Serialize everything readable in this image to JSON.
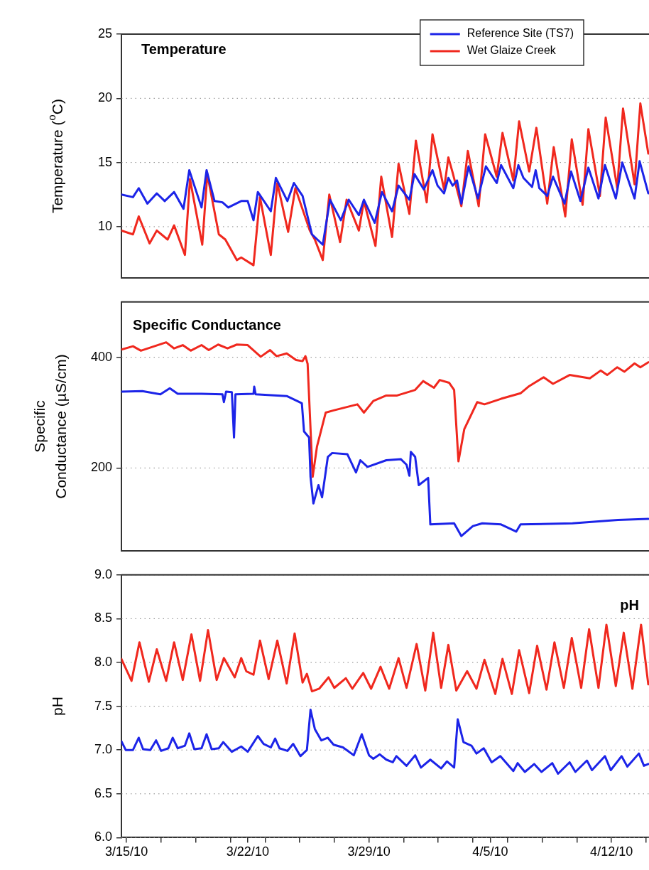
{
  "chart_data": [
    {
      "type": "line",
      "title": "Temperature",
      "ylabel": "Temperature ($^{o}$C)",
      "xlim": [
        "--03-14T17:00",
        "--04-14T04:00"
      ],
      "ylim": [
        6,
        25
      ],
      "yticks": [
        10,
        15,
        20,
        25
      ],
      "grid": "y",
      "legend": "top right",
      "tick_labels": "y",
      "line_style": "solid",
      "series": [
        {
          "name": "Reference Site (TS7)",
          "color": "#1c24e8",
          "x": [
            "--03-14T17:00",
            "--03-15T09:00",
            "--03-15T17:00",
            "--03-16T05:00",
            "--03-16T18:00",
            "--03-17T05:00",
            "--03-17T18:00",
            "--03-18T07:00",
            "--03-18T15:00",
            "--03-19T08:00",
            "--03-19T15:00",
            "--03-20T02:00",
            "--03-20T13:00",
            "--03-20T21:00",
            "--03-21T15:00",
            "--03-22T00:00",
            "--03-22T08:00",
            "--03-22T14:00",
            "--03-23T08:00",
            "--03-23T15:00",
            "--03-24T07:00",
            "--03-24T16:00",
            "--03-25T04:00",
            "--03-25T17:00",
            "--03-26T08:00",
            "--03-26T18:00",
            "--03-27T09:00",
            "--03-27T20:00",
            "--03-28T10:00",
            "--03-28T17:00",
            "--03-29T08:00",
            "--03-29T18:00",
            "--03-30T08:00",
            "--03-30T17:00",
            "--03-31T08:00",
            "--03-31T15:00",
            "--04-01T04:00",
            "--04-01T16:00",
            "--04-01T23:00",
            "--04-02T08:00",
            "--04-02T14:00",
            "--04-02T20:00",
            "--04-03T02:00",
            "--04-03T08:00",
            "--04-03T18:00",
            "--04-04T07:00",
            "--04-04T18:00",
            "--04-05T09:00",
            "--04-05T15:00",
            "--04-06T08:00",
            "--04-06T15:00",
            "--04-06T22:00",
            "--04-07T10:00",
            "--04-07T15:00",
            "--04-07T20:00",
            "--04-08T07:00",
            "--04-08T15:00",
            "--04-09T07:00",
            "--04-09T16:00",
            "--04-10T05:00",
            "--04-10T16:00",
            "--04-11T06:00",
            "--04-11T15:00",
            "--04-12T06:00",
            "--04-12T15:00",
            "--04-13T08:00",
            "--04-13T15:00",
            "--04-14T03:00"
          ],
          "values": [
            12.5,
            12.3,
            13.0,
            11.8,
            12.6,
            12.0,
            12.7,
            11.4,
            14.4,
            11.5,
            14.4,
            12.0,
            11.9,
            11.5,
            12.0,
            12.0,
            10.5,
            12.7,
            11.2,
            13.8,
            12.0,
            13.4,
            12.4,
            9.4,
            8.6,
            12.1,
            10.5,
            12.1,
            10.9,
            12.1,
            10.3,
            12.7,
            11.2,
            13.2,
            12.1,
            14.1,
            12.9,
            14.4,
            13.2,
            12.6,
            13.8,
            13.2,
            13.6,
            11.8,
            14.7,
            12.2,
            14.7,
            13.4,
            14.8,
            13.0,
            14.8,
            13.8,
            13.1,
            14.4,
            13.0,
            12.4,
            13.9,
            11.8,
            14.3,
            12.0,
            14.6,
            12.2,
            14.8,
            12.2,
            15.0,
            12.2,
            15.1,
            12.6
          ]
        },
        {
          "name": "Wet Glaize Creek",
          "color": "#f0281e",
          "x": [
            "--03-14T17:00",
            "--03-15T09:00",
            "--03-15T17:00",
            "--03-16T08:00",
            "--03-16T18:00",
            "--03-17T09:00",
            "--03-17T18:00",
            "--03-18T09:00",
            "--03-18T16:00",
            "--03-19T09:00",
            "--03-19T16:00",
            "--03-20T08:00",
            "--03-20T17:00",
            "--03-21T09:00",
            "--03-21T15:00",
            "--03-22T08:00",
            "--03-22T17:00",
            "--03-23T08:00",
            "--03-23T17:00",
            "--03-24T08:00",
            "--03-24T18:00",
            "--03-25T14:00",
            "--03-25T21:00",
            "--03-26T08:00",
            "--03-26T17:00",
            "--03-27T08:00",
            "--03-27T17:00",
            "--03-28T10:00",
            "--03-28T17:00",
            "--03-29T09:00",
            "--03-29T17:00",
            "--03-30T08:00",
            "--03-30T17:00",
            "--03-31T08:00",
            "--03-31T17:00",
            "--04-01T08:00",
            "--04-01T16:00",
            "--04-02T08:00",
            "--04-02T14:00",
            "--04-02T20:00",
            "--04-03T08:00",
            "--04-03T17:00",
            "--04-04T08:00",
            "--04-04T17:00",
            "--04-05T09:00",
            "--04-05T17:00",
            "--04-06T08:00",
            "--04-06T16:00",
            "--04-07T06:00",
            "--04-07T16:00",
            "--04-08T07:00",
            "--04-08T16:00",
            "--04-09T08:00",
            "--04-09T17:00",
            "--04-10T08:00",
            "--04-10T16:00",
            "--04-11T08:00",
            "--04-11T16:00",
            "--04-12T08:00",
            "--04-12T16:00",
            "--04-13T08:00",
            "--04-13T16:00",
            "--04-14T03:00"
          ],
          "values": [
            9.7,
            9.4,
            10.8,
            8.7,
            9.7,
            9.0,
            10.1,
            7.8,
            13.7,
            8.6,
            14.1,
            9.4,
            9.0,
            7.4,
            7.6,
            7.0,
            12.3,
            7.8,
            13.4,
            9.6,
            13.0,
            9.7,
            9.0,
            7.4,
            12.5,
            8.8,
            12.1,
            9.7,
            12.0,
            8.5,
            13.9,
            9.2,
            14.9,
            11.0,
            16.7,
            11.9,
            17.2,
            12.9,
            15.4,
            14.2,
            11.6,
            15.9,
            11.6,
            17.2,
            13.9,
            17.3,
            13.6,
            18.2,
            14.3,
            17.7,
            11.8,
            16.2,
            10.8,
            16.8,
            11.7,
            17.6,
            12.4,
            18.5,
            13.0,
            19.2,
            13.3,
            19.6,
            15.7
          ]
        }
      ]
    },
    {
      "type": "line",
      "title": "Specific Conductance",
      "ylabel": "Specific Conductance (µS/cm)",
      "xlim": [
        "--03-14T17:00",
        "--04-14T04:00"
      ],
      "ylim": [
        50,
        500
      ],
      "yticks": [
        200,
        400
      ],
      "grid": "y",
      "tick_labels": "y",
      "line_style": "solid",
      "series": [
        {
          "color": "#1c24e8",
          "x": [
            "--03-14T17:00",
            "--03-15T22:00",
            "--03-16T23:00",
            "--03-17T12:00",
            "--03-17T23:00",
            "--03-19T08:00",
            "--03-20T13:00",
            "--03-20T15:00",
            "--03-20T18:00",
            "--03-21T02:00",
            "--03-21T05:00",
            "--03-21T07:00",
            "--03-22T08:00",
            "--03-22T09:00",
            "--03-22T11:00",
            "--03-24T06:00",
            "--03-24T22:00",
            "--03-25T03:00",
            "--03-25T06:00",
            "--03-25T13:00",
            "--03-25T15:00",
            "--03-25T19:00",
            "--03-26T02:00",
            "--03-26T07:00",
            "--03-26T15:00",
            "--03-26T21:00",
            "--03-27T18:00",
            "--03-28T06:00",
            "--03-28T12:00",
            "--03-28T22:00",
            "--03-30T00:00",
            "--03-30T20:00",
            "--03-31T04:00",
            "--03-31T08:00",
            "--03-31T10:00",
            "--03-31T16:00",
            "--03-31T21:00",
            "--04-01T10:00",
            "--04-01T13:00",
            "--04-02T22:00",
            "--04-03T08:00",
            "--04-04T00:00",
            "--04-04T13:00",
            "--04-05T15:00",
            "--04-06T12:00",
            "--04-06T18:00",
            "--04-09T18:00",
            "--04-12T09:00",
            "--04-14T03:00"
          ],
          "values": [
            338,
            339,
            333,
            344,
            334,
            334,
            333,
            319,
            338,
            337,
            255,
            333,
            334,
            347,
            333,
            330,
            320,
            317,
            266,
            255,
            184,
            136,
            169,
            147,
            220,
            227,
            225,
            192,
            214,
            202,
            214,
            216,
            206,
            186,
            229,
            220,
            169,
            182,
            98,
            100,
            77,
            95,
            100,
            98,
            85,
            98,
            100,
            106,
            108
          ]
        },
        {
          "color": "#f0281e",
          "x": [
            "--03-14T17:00",
            "--03-15T09:00",
            "--03-15T20:00",
            "--03-17T07:00",
            "--03-17T18:00",
            "--03-18T06:00",
            "--03-18T17:00",
            "--03-19T08:00",
            "--03-19T18:00",
            "--03-20T07:00",
            "--03-20T20:00",
            "--03-21T09:00",
            "--03-22T00:00",
            "--03-22T18:00",
            "--03-23T07:00",
            "--03-23T16:00",
            "--03-24T06:00",
            "--03-24T19:00",
            "--03-25T04:00",
            "--03-25T08:00",
            "--03-25T11:00",
            "--03-25T18:00",
            "--03-26T00:00",
            "--03-26T12:00",
            "--03-26T23:00",
            "--03-28T08:00",
            "--03-28T17:00",
            "--03-29T06:00",
            "--03-30T00:00",
            "--03-30T15:00",
            "--03-31T16:00",
            "--04-01T03:00",
            "--04-01T18:00",
            "--04-02T02:00",
            "--04-02T15:00",
            "--04-02T22:00",
            "--04-03T04:00",
            "--04-03T12:00",
            "--04-04T06:00",
            "--04-04T16:00",
            "--04-05T15:00",
            "--04-06T18:00",
            "--04-07T06:00",
            "--04-08T02:00",
            "--04-08T15:00",
            "--04-09T14:00",
            "--04-10T18:00",
            "--04-11T09:00",
            "--04-11T18:00",
            "--04-12T08:00",
            "--04-12T18:00",
            "--04-13T08:00",
            "--04-13T16:00",
            "--04-14T03:00"
          ],
          "values": [
            414,
            420,
            412,
            427,
            416,
            422,
            412,
            422,
            413,
            423,
            416,
            423,
            422,
            401,
            413,
            402,
            407,
            395,
            393,
            402,
            388,
            184,
            239,
            300,
            304,
            315,
            300,
            321,
            331,
            331,
            341,
            357,
            345,
            359,
            354,
            341,
            212,
            270,
            319,
            315,
            325,
            335,
            348,
            364,
            352,
            368,
            362,
            376,
            368,
            382,
            374,
            389,
            382,
            391
          ]
        }
      ]
    },
    {
      "type": "line",
      "title": "pH",
      "ylabel": "pH",
      "xlim": [
        "--03-14T17:00",
        "--04-14T04:00"
      ],
      "ylim": [
        6,
        9
      ],
      "yticks": [
        {
          "value": 6,
          "label": "6.0"
        },
        6.5,
        {
          "value": 7,
          "label": "7.0"
        },
        7.5,
        {
          "value": 8,
          "label": "8.0"
        },
        8.5,
        {
          "value": 9,
          "label": "9.0"
        }
      ],
      "xticks": [
        {
          "value": "--03-15",
          "label": "3/15/10"
        },
        {
          "value": "--03-17",
          "label": null
        },
        {
          "value": "--03-19",
          "label": null
        },
        {
          "value": "--03-21",
          "label": null
        },
        {
          "value": "--03-22",
          "label": "3/22/10"
        },
        {
          "value": "--03-23",
          "label": null
        },
        {
          "value": "--03-25",
          "label": null
        },
        {
          "value": "--03-27",
          "label": null
        },
        {
          "value": "--03-29",
          "label": "3/29/10"
        },
        {
          "value": "--03-31",
          "label": null
        },
        {
          "value": "--04-02",
          "label": null
        },
        {
          "value": "--04-04",
          "label": null
        },
        {
          "value": "--04-05",
          "label": "4/5/10"
        },
        {
          "value": "--04-06",
          "label": null
        },
        {
          "value": "--04-08",
          "label": null
        },
        {
          "value": "--04-10",
          "label": null
        },
        {
          "value": "--04-12",
          "label": "4/12/10"
        },
        {
          "value": "--04-14",
          "label": null
        }
      ],
      "grid": "y",
      "line_style": "solid",
      "series": [
        {
          "color": "#1c24e8",
          "x": [
            "--03-14T17:00",
            "--03-14T23:00",
            "--03-15T09:00",
            "--03-15T17:00",
            "--03-15T23:00",
            "--03-16T09:00",
            "--03-16T17:00",
            "--03-17T00:00",
            "--03-17T10:00",
            "--03-17T16:00",
            "--03-17T23:00",
            "--03-18T09:00",
            "--03-18T15:00",
            "--03-18T22:00",
            "--03-19T08:00",
            "--03-19T15:00",
            "--03-19T22:00",
            "--03-20T08:00",
            "--03-20T14:00",
            "--03-21T02:00",
            "--03-21T15:00",
            "--03-22T00:00",
            "--03-22T14:00",
            "--03-22T22:00",
            "--03-23T08:00",
            "--03-23T14:00",
            "--03-23T20:00",
            "--03-24T07:00",
            "--03-24T15:00",
            "--03-25T01:00",
            "--03-25T10:00",
            "--03-25T15:00",
            "--03-25T21:00",
            "--03-26T06:00",
            "--03-26T15:00",
            "--03-26T23:00",
            "--03-27T12:00",
            "--03-28T03:00",
            "--03-28T14:00",
            "--03-29T00:00",
            "--03-29T06:00",
            "--03-29T15:00",
            "--03-30T00:00",
            "--03-30T09:00",
            "--03-30T14:00",
            "--03-31T04:00",
            "--03-31T16:00",
            "--04-01T00:00",
            "--04-01T13:00",
            "--04-02T04:00",
            "--04-02T12:00",
            "--04-02T22:00",
            "--04-03T03:00",
            "--04-03T11:00",
            "--04-03T22:00",
            "--04-04T05:00",
            "--04-04T15:00",
            "--04-05T02:00",
            "--04-05T14:00",
            "--04-06T08:00",
            "--04-06T14:00",
            "--04-07T00:00",
            "--04-07T13:00",
            "--04-07T23:00",
            "--04-08T14:00",
            "--04-08T22:00",
            "--04-09T14:00",
            "--04-09T22:00",
            "--04-10T14:00",
            "--04-10T21:00",
            "--04-11T15:00",
            "--04-11T23:00",
            "--04-12T14:00",
            "--04-12T22:00",
            "--04-13T14:00",
            "--04-13T21:00",
            "--04-14T03:00"
          ],
          "values": [
            7.1,
            7.0,
            7.0,
            7.14,
            7.01,
            7.0,
            7.11,
            6.99,
            7.02,
            7.14,
            7.02,
            7.05,
            7.19,
            7.01,
            7.02,
            7.18,
            7.01,
            7.02,
            7.09,
            6.98,
            7.04,
            6.98,
            7.16,
            7.07,
            7.03,
            7.13,
            7.02,
            6.99,
            7.07,
            6.93,
            7.0,
            7.46,
            7.24,
            7.11,
            7.14,
            7.06,
            7.03,
            6.94,
            7.18,
            6.94,
            6.9,
            6.95,
            6.89,
            6.86,
            6.93,
            6.82,
            6.94,
            6.8,
            6.89,
            6.79,
            6.87,
            6.8,
            7.35,
            7.09,
            7.05,
            6.96,
            7.02,
            6.86,
            6.93,
            6.76,
            6.85,
            6.75,
            6.84,
            6.75,
            6.85,
            6.73,
            6.86,
            6.75,
            6.88,
            6.77,
            6.93,
            6.77,
            6.93,
            6.81,
            6.96,
            6.82,
            6.84
          ]
        },
        {
          "color": "#f0281e",
          "x": [
            "--03-14T17:00",
            "--03-15T07:00",
            "--03-15T18:00",
            "--03-16T07:00",
            "--03-16T18:00",
            "--03-17T07:00",
            "--03-17T18:00",
            "--03-18T06:00",
            "--03-18T18:00",
            "--03-19T06:00",
            "--03-19T17:00",
            "--03-20T05:00",
            "--03-20T15:00",
            "--03-21T06:00",
            "--03-21T15:00",
            "--03-21T22:00",
            "--03-22T08:00",
            "--03-22T17:00",
            "--03-23T05:00",
            "--03-23T17:00",
            "--03-24T06:00",
            "--03-24T17:00",
            "--03-25T04:00",
            "--03-25T10:00",
            "--03-25T17:00",
            "--03-26T03:00",
            "--03-26T16:00",
            "--03-27T00:00",
            "--03-27T16:00",
            "--03-28T01:00",
            "--03-28T16:00",
            "--03-29T03:00",
            "--03-29T16:00",
            "--03-30T04:00",
            "--03-30T17:00",
            "--03-31T04:00",
            "--03-31T18:00",
            "--04-01T06:00",
            "--04-01T17:00",
            "--04-02T04:00",
            "--04-02T14:00",
            "--04-03T01:00",
            "--04-03T16:00",
            "--04-04T05:00",
            "--04-04T16:00",
            "--04-05T07:00",
            "--04-05T17:00",
            "--04-06T06:00",
            "--04-06T16:00",
            "--04-07T06:00",
            "--04-07T17:00",
            "--04-08T06:00",
            "--04-08T17:00",
            "--04-09T06:00",
            "--04-09T17:00",
            "--04-10T06:00",
            "--04-10T17:00",
            "--04-11T06:00",
            "--04-11T17:00",
            "--04-12T06:00",
            "--04-12T17:00",
            "--04-13T05:00",
            "--04-13T17:00",
            "--04-14T03:00"
          ],
          "values": [
            8.04,
            7.79,
            8.23,
            7.78,
            8.15,
            7.79,
            8.23,
            7.8,
            8.32,
            7.79,
            8.37,
            7.8,
            8.05,
            7.83,
            8.05,
            7.9,
            7.86,
            8.25,
            7.81,
            8.25,
            7.76,
            8.33,
            7.77,
            7.87,
            7.67,
            7.7,
            7.83,
            7.71,
            7.82,
            7.7,
            7.88,
            7.7,
            7.95,
            7.7,
            8.05,
            7.71,
            8.21,
            7.68,
            8.34,
            7.71,
            8.2,
            7.68,
            7.9,
            7.7,
            8.03,
            7.64,
            8.04,
            7.64,
            8.14,
            7.65,
            8.19,
            7.69,
            8.23,
            7.71,
            8.28,
            7.71,
            8.38,
            7.71,
            8.43,
            7.73,
            8.34,
            7.7,
            8.43,
            7.75
          ]
        }
      ]
    }
  ]
}
